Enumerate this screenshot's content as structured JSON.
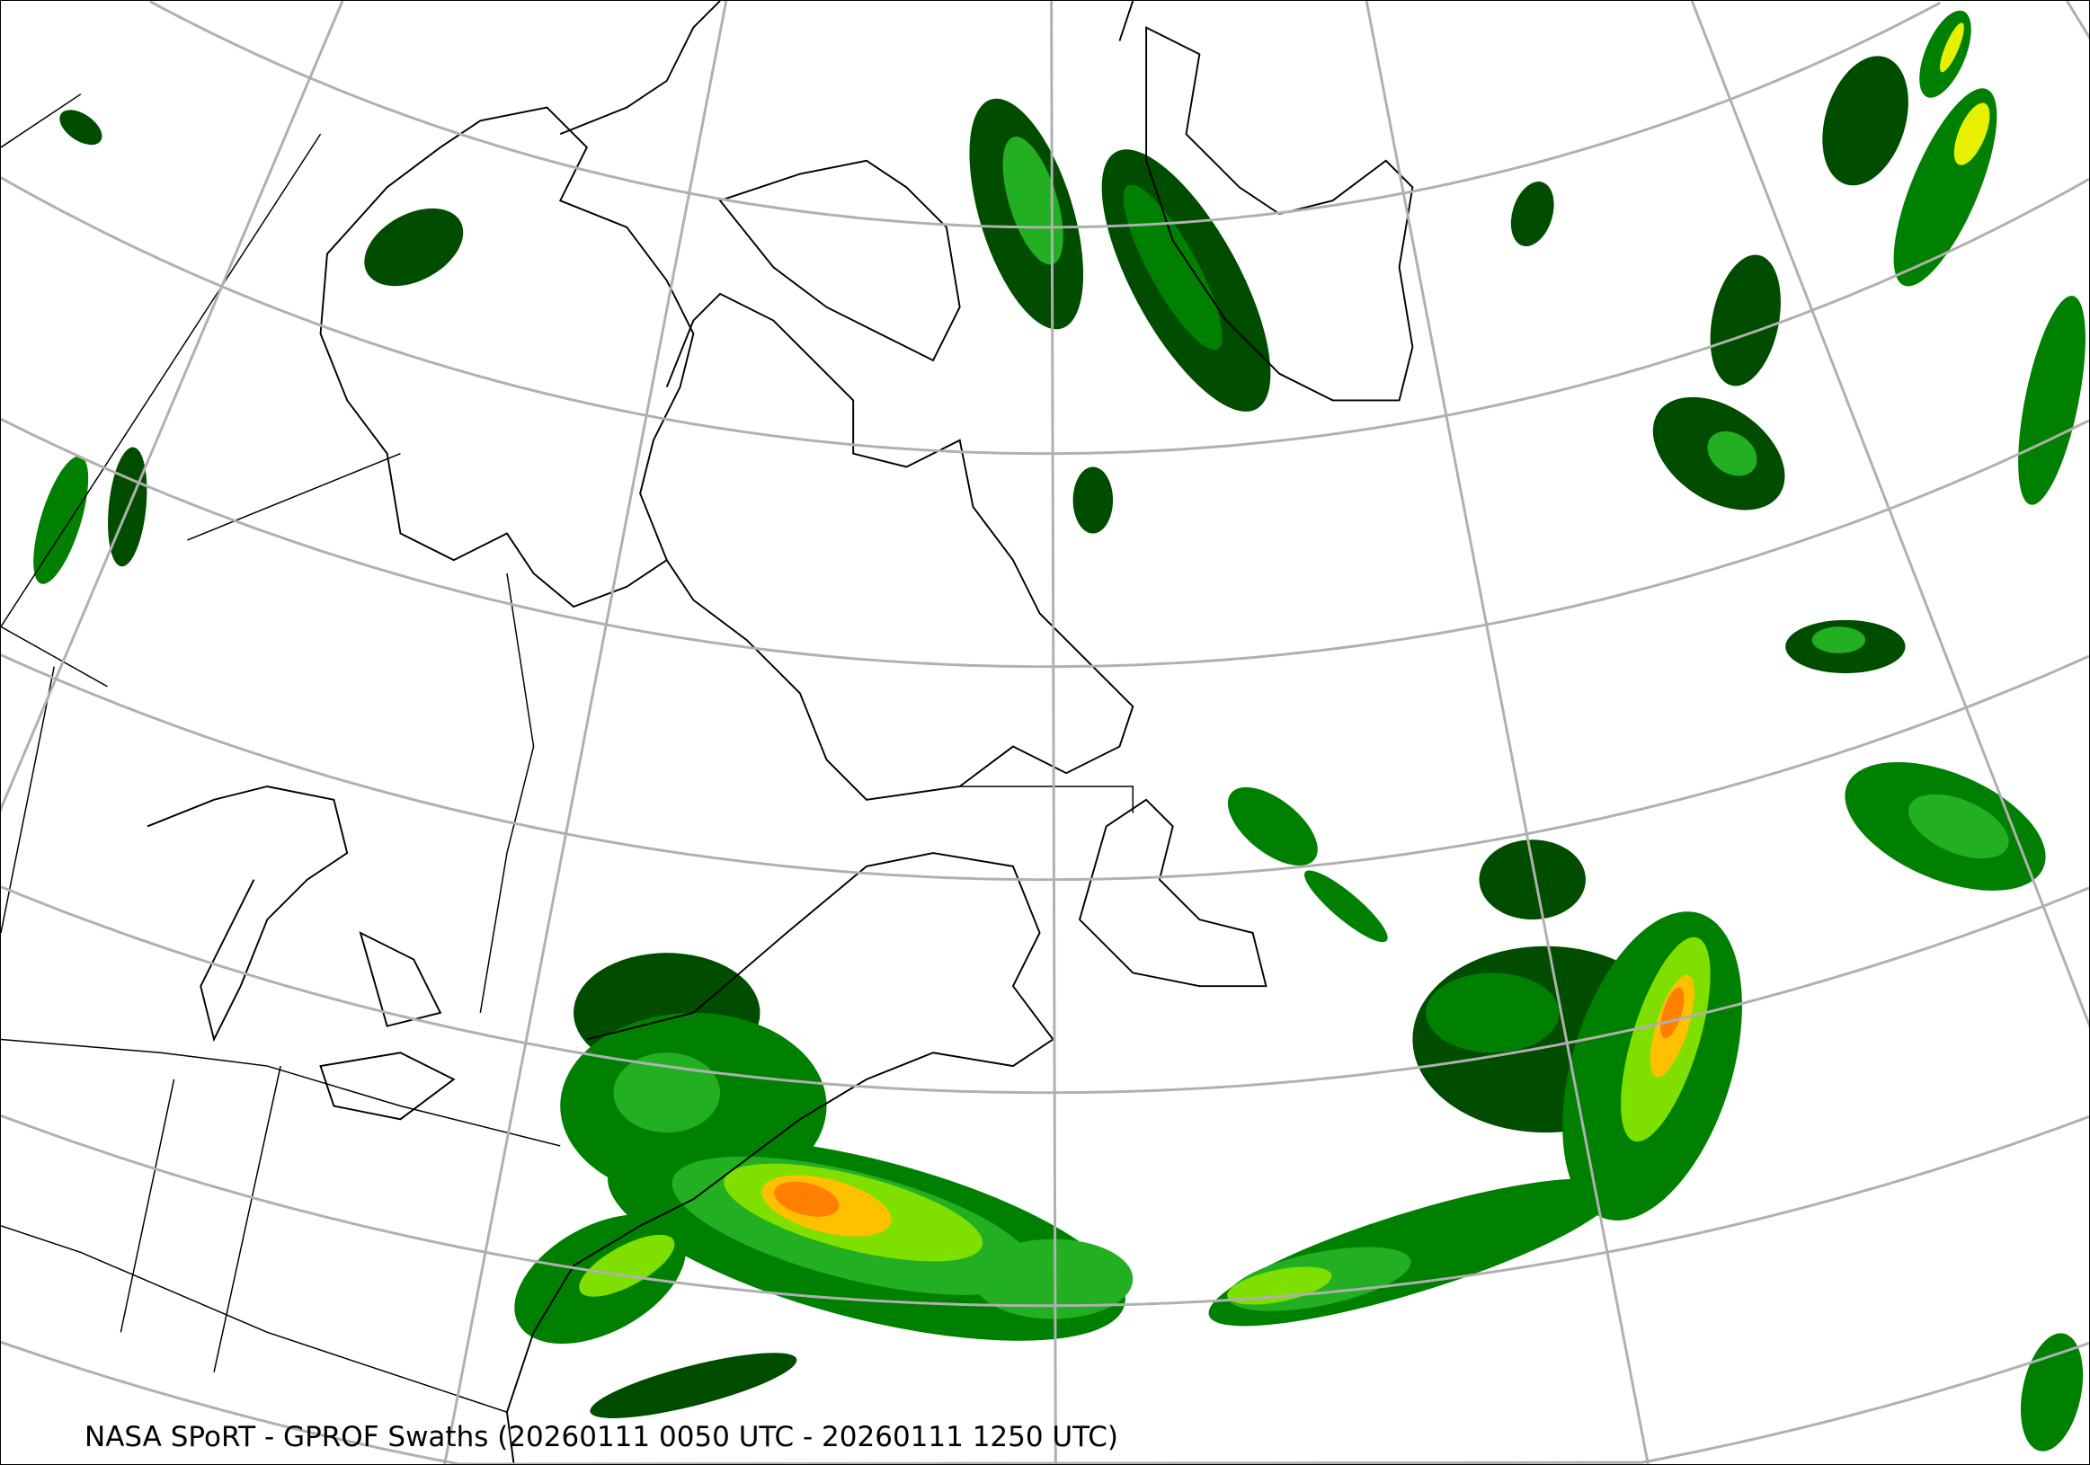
{
  "map": {
    "caption": "NASA SPoRT - GPROF Swaths (20260111 0050 UTC - 20260111 1250 UTC)",
    "graticule_color": "#b0b0b0",
    "coastline_color": "#000000",
    "precip_colors": [
      "#004d00",
      "#008000",
      "#22b022",
      "#7fe000",
      "#e6f000",
      "#ffc000",
      "#ff8000"
    ]
  }
}
